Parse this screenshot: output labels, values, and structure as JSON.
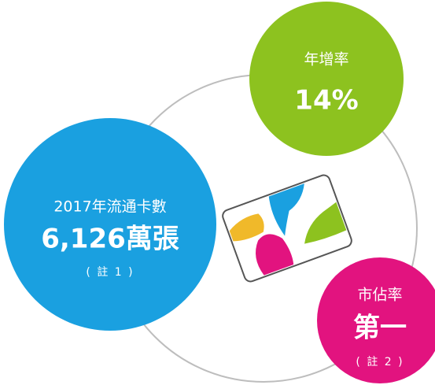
{
  "bubbles": [
    {
      "label": "年增率",
      "value": "14%"
    },
    {
      "label": "2017年流通卡數",
      "value": "6,126萬張",
      "note": "( 註 1 )"
    },
    {
      "label": "市佔率",
      "value": "第一",
      "note": "( 註 2 )"
    }
  ]
}
